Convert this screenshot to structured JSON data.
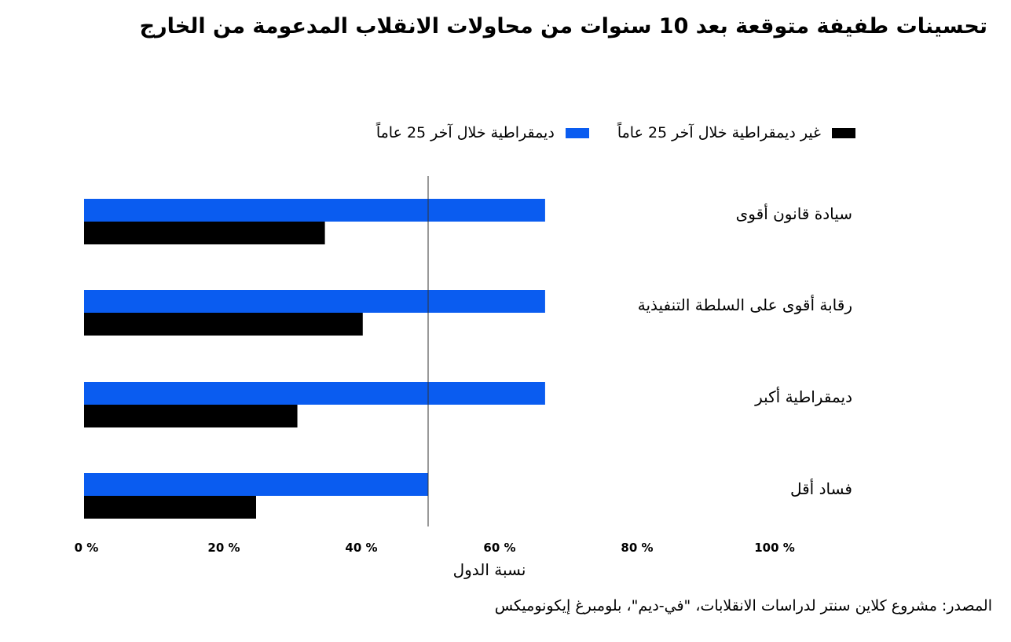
{
  "title": "تحسينات طفيفة متوقعة بعد 10 سنوات من محاولات الانقلاب المدعومة من الخارج",
  "legend": {
    "items": [
      {
        "label": "غير ديمقراطية خلال آخر 25 عاماً",
        "color": "#000000"
      },
      {
        "label": "ديمقراطية خلال آخر 25 عاماً",
        "color": "#0a5cf0"
      }
    ]
  },
  "chart_data": {
    "type": "bar",
    "orientation": "horizontal",
    "categories": [
      "سيادة قانون أقوى",
      "رقابة أقوى على السلطة التنفيذية",
      "ديمقراطية أكبر",
      "فساد أقل"
    ],
    "series": [
      {
        "name": "ديمقراطية خلال آخر 25 عاماً",
        "color": "#0a5cf0",
        "values": [
          67,
          67,
          67,
          50
        ]
      },
      {
        "name": "غير ديمقراطية خلال آخر 25 عاماً",
        "color": "#000000",
        "values": [
          35,
          40.5,
          31,
          25
        ]
      }
    ],
    "xlim": [
      0,
      100
    ],
    "xticks": [
      0,
      20,
      40,
      60,
      80,
      100
    ],
    "tick_labels": [
      "0 %",
      "20 %",
      "40 %",
      "60 %",
      "80 %",
      "100 %"
    ],
    "reference_line": 50,
    "xlabel": "نسبة الدول",
    "legend_position": "top",
    "grid": false
  },
  "source": "المصدر: مشروع كلاين سنتر لدراسات الانقلابات، \"في-ديم\"، بلومبرغ إيكونوميكس"
}
